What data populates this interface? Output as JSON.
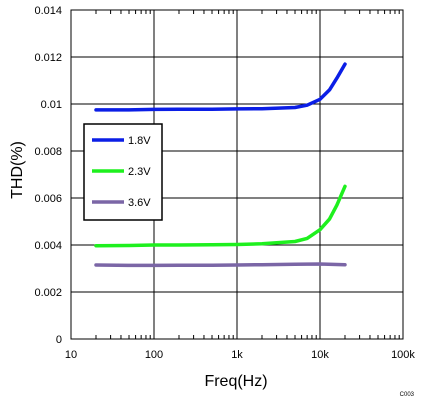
{
  "chart_data": {
    "type": "line",
    "title": "",
    "xlabel": "Freq(Hz)",
    "ylabel": "THD(%)",
    "x_scale": "log",
    "xlim": [
      10,
      100000
    ],
    "ylim": [
      0,
      0.014
    ],
    "x_ticks": [
      10,
      100,
      1000,
      10000,
      100000
    ],
    "x_tick_labels": [
      "10",
      "100",
      "1k",
      "10k",
      "100k"
    ],
    "y_ticks": [
      0,
      0.002,
      0.004,
      0.006,
      0.008,
      0.01,
      0.012,
      0.014
    ],
    "y_tick_labels": [
      "0",
      "0.002",
      "0.004",
      "0.006",
      "0.008",
      "0.01",
      "0.012",
      "0.014"
    ],
    "grid": true,
    "legend_position": "left-center",
    "series": [
      {
        "name": "1.8V",
        "color": "#0b1ee6",
        "x": [
          20,
          50,
          100,
          200,
          500,
          1000,
          2000,
          5000,
          7000,
          10000,
          13000,
          16000,
          20000
        ],
        "y": [
          0.00975,
          0.00975,
          0.00977,
          0.00978,
          0.00978,
          0.00979,
          0.0098,
          0.00985,
          0.00995,
          0.0102,
          0.0106,
          0.0111,
          0.0117
        ]
      },
      {
        "name": "2.3V",
        "color": "#1ef01e",
        "x": [
          20,
          50,
          100,
          200,
          500,
          1000,
          2000,
          5000,
          7000,
          10000,
          13000,
          16000,
          20000
        ],
        "y": [
          0.00397,
          0.00398,
          0.004,
          0.004,
          0.00401,
          0.00402,
          0.00405,
          0.00415,
          0.00428,
          0.00465,
          0.0051,
          0.0057,
          0.0065
        ]
      },
      {
        "name": "3.6V",
        "color": "#7b66a6",
        "x": [
          20,
          50,
          100,
          200,
          500,
          1000,
          2000,
          5000,
          10000,
          20000
        ],
        "y": [
          0.00315,
          0.00313,
          0.00313,
          0.00314,
          0.00314,
          0.00315,
          0.00316,
          0.00318,
          0.00319,
          0.00316
        ]
      }
    ]
  },
  "figure_code": "C003"
}
